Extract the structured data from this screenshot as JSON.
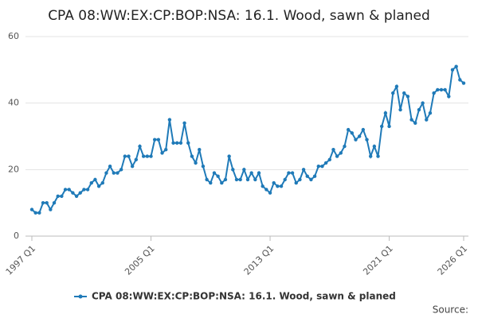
{
  "chart_data": {
    "type": "line",
    "title": "CPA 08:WW:EX:CP:BOP:NSA: 16.1. Wood, sawn & planed",
    "categories": [
      "1997 Q1",
      null,
      null,
      null,
      null,
      null,
      null,
      null,
      null,
      null,
      null,
      null,
      null,
      null,
      null,
      null,
      null,
      null,
      null,
      null,
      null,
      null,
      null,
      null,
      null,
      null,
      null,
      null,
      null,
      null,
      null,
      null,
      "2005 Q1",
      null,
      null,
      null,
      null,
      null,
      null,
      null,
      null,
      null,
      null,
      null,
      null,
      null,
      null,
      null,
      null,
      null,
      null,
      null,
      null,
      null,
      null,
      null,
      null,
      null,
      null,
      null,
      null,
      null,
      null,
      null,
      "2013 Q1",
      null,
      null,
      null,
      null,
      null,
      null,
      null,
      null,
      null,
      null,
      null,
      null,
      null,
      null,
      null,
      null,
      null,
      null,
      null,
      null,
      null,
      null,
      null,
      null,
      null,
      null,
      null,
      null,
      null,
      null,
      null,
      "2021 Q1",
      null,
      null,
      null,
      null,
      null,
      null,
      null,
      null,
      null,
      null,
      null,
      null,
      null,
      null,
      null,
      null,
      null,
      null,
      null,
      "2026 Q1"
    ],
    "series": [
      {
        "name": "CPA 08:WW:EX:CP:BOP:NSA: 16.1. Wood, sawn & planed",
        "color": "#1f7ab8",
        "values": [
          8,
          7,
          7,
          10,
          10,
          8,
          10,
          12,
          12,
          14,
          14,
          13,
          12,
          13,
          14,
          14,
          16,
          17,
          15,
          16,
          19,
          21,
          19,
          19,
          20,
          24,
          24,
          21,
          23,
          27,
          24,
          24,
          24,
          29,
          29,
          25,
          26,
          35,
          28,
          28,
          28,
          34,
          28,
          24,
          22,
          26,
          21,
          17,
          16,
          19,
          18,
          16,
          17,
          24,
          20,
          17,
          17,
          20,
          17,
          19,
          17,
          19,
          15,
          14,
          13,
          16,
          15,
          15,
          17,
          19,
          19,
          16,
          17,
          20,
          18,
          17,
          18,
          21,
          21,
          22,
          23,
          26,
          24,
          25,
          27,
          32,
          31,
          29,
          30,
          32,
          29,
          24,
          27,
          24,
          33,
          37,
          33,
          43,
          45,
          38,
          43,
          42,
          35,
          34,
          38,
          40,
          35,
          37,
          43,
          44,
          44,
          44,
          42,
          50,
          51,
          47,
          46
        ]
      }
    ],
    "ylim": [
      0,
      60
    ],
    "yticks": [
      0,
      20,
      40,
      60
    ],
    "grid": true,
    "legend": "bottom",
    "source": "Source:"
  }
}
